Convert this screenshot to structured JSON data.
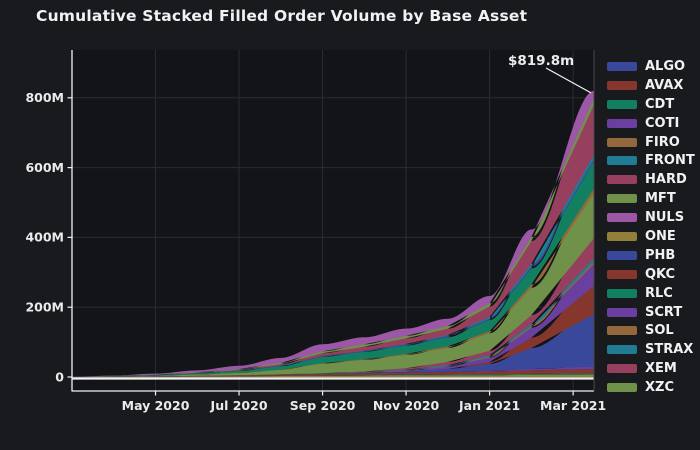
{
  "title": "Cumulative Stacked Filled Order Volume by Base Asset",
  "annotation": {
    "label": "$819.8m",
    "value_millions": 819.8
  },
  "colors": {
    "figure_bg": "#191a1e",
    "plot_bg": "#131418",
    "grid": "#2a2c32",
    "axis_line": "#f1f1f3",
    "right_spine": "#46474c",
    "text": "#f2f2f4"
  },
  "chart_data": {
    "type": "area",
    "stacked": true,
    "title": "Cumulative Stacked Filled Order Volume by Base Asset",
    "unit": "millions_usd",
    "grid": true,
    "legend_position": "right",
    "ylim": [
      0,
      935
    ],
    "total_final_millions": 819.8,
    "x": [
      "2020-03",
      "2020-04",
      "2020-05",
      "2020-06",
      "2020-07",
      "2020-08",
      "2020-09",
      "2020-10",
      "2020-11",
      "2020-12",
      "2021-01",
      "2021-02",
      "2021-03"
    ],
    "x_month_positions": [
      0,
      1,
      2,
      3,
      4,
      5,
      6,
      7,
      8,
      9,
      10,
      11,
      12.5
    ],
    "xticks": [
      {
        "month": 2,
        "label": "May 2020"
      },
      {
        "month": 4,
        "label": "Jul 2020"
      },
      {
        "month": 6,
        "label": "Sep 2020"
      },
      {
        "month": 8,
        "label": "Nov 2020"
      },
      {
        "month": 10,
        "label": "Jan 2021"
      },
      {
        "month": 12,
        "label": "Mar 2021"
      }
    ],
    "yticks": [
      {
        "value": 0,
        "label": "0"
      },
      {
        "value": 200,
        "label": "200M"
      },
      {
        "value": 400,
        "label": "400M"
      },
      {
        "value": 600,
        "label": "600M"
      },
      {
        "value": 800,
        "label": "800M"
      }
    ],
    "stack_order_bottom_to_top": [
      "ONE",
      "CDT",
      "QKC",
      "SCRT",
      "ALGO",
      "AVAX",
      "COTI",
      "FIRO",
      "FRONT",
      "HARD",
      "MFT",
      "SOL",
      "RLC",
      "PHB",
      "STRAX",
      "XEM",
      "XZC",
      "NULS"
    ],
    "series": [
      {
        "name": "ALGO",
        "color": "#3a489c",
        "values": [
          0,
          0,
          0,
          0,
          0,
          0,
          0,
          0,
          2,
          8,
          20,
          60,
          150
        ]
      },
      {
        "name": "AVAX",
        "color": "#85372e",
        "values": [
          0,
          0,
          0,
          0,
          0,
          0,
          0,
          0,
          0,
          0,
          6,
          30,
          82
        ]
      },
      {
        "name": "CDT",
        "color": "#128060",
        "values": [
          0.05,
          0.1,
          0.2,
          0.4,
          0.6,
          0.9,
          1.2,
          1.5,
          1.8,
          2.2,
          2.6,
          3.2,
          4
        ]
      },
      {
        "name": "COTI",
        "color": "#6a3fa0",
        "values": [
          0,
          0,
          0,
          0,
          0,
          0,
          0,
          1,
          3,
          7,
          12,
          28,
          62
        ]
      },
      {
        "name": "FIRO",
        "color": "#92683c",
        "values": [
          0,
          0,
          0,
          0,
          0,
          0,
          0,
          0,
          0.5,
          1.2,
          2.2,
          4,
          7
        ]
      },
      {
        "name": "FRONT",
        "color": "#1f7c92",
        "values": [
          0,
          0,
          0,
          0,
          0,
          0.5,
          1.2,
          1.8,
          2.4,
          3.2,
          4.4,
          6.5,
          9
        ]
      },
      {
        "name": "HARD",
        "color": "#963f5e",
        "values": [
          0,
          0,
          0,
          0,
          0,
          0,
          0,
          2,
          5,
          9,
          13,
          26,
          58
        ]
      },
      {
        "name": "MFT",
        "color": "#6f9149",
        "values": [
          0.2,
          0.8,
          2,
          4,
          7,
          13,
          28,
          33,
          38,
          40,
          50,
          78,
          128
        ]
      },
      {
        "name": "NULS",
        "color": "#9c58a6",
        "values": [
          0.3,
          1.2,
          3,
          5.5,
          9,
          14,
          20,
          20.4,
          20.8,
          21,
          21.3,
          21.6,
          22
        ]
      },
      {
        "name": "ONE",
        "color": "#92803a",
        "values": [
          0.1,
          0.4,
          0.8,
          1.4,
          2,
          2.8,
          3.5,
          4,
          4.4,
          4.8,
          5.2,
          6,
          7
        ]
      },
      {
        "name": "PHB",
        "color": "#3a489c",
        "values": [
          0.05,
          0.2,
          0.5,
          0.9,
          1.4,
          2,
          2.6,
          3,
          3.4,
          3.8,
          4.2,
          5,
          6
        ]
      },
      {
        "name": "QKC",
        "color": "#85372e",
        "values": [
          0.1,
          0.3,
          0.7,
          1.3,
          2.2,
          3.4,
          4.8,
          5.6,
          6.2,
          7,
          8,
          9.8,
          12
        ]
      },
      {
        "name": "RLC",
        "color": "#128060",
        "values": [
          0.2,
          0.6,
          1.5,
          3,
          5.5,
          10,
          18,
          21,
          24,
          26,
          32,
          46,
          78
        ]
      },
      {
        "name": "SCRT",
        "color": "#6a3fa0",
        "values": [
          0,
          0,
          0,
          0,
          0,
          0,
          0,
          0,
          0,
          0.8,
          1.8,
          4,
          7
        ]
      },
      {
        "name": "SOL",
        "color": "#92683c",
        "values": [
          0,
          0,
          0,
          0,
          0,
          0,
          1,
          2,
          3,
          4.5,
          6,
          9.5,
          14
        ]
      },
      {
        "name": "STRAX",
        "color": "#1f7c92",
        "values": [
          0,
          0,
          0,
          0,
          0,
          0,
          0,
          0,
          1,
          2.5,
          4.5,
          8,
          13
        ]
      },
      {
        "name": "XEM",
        "color": "#963f5e",
        "values": [
          0,
          0.1,
          0.3,
          0.8,
          1.8,
          4,
          8,
          12,
          16,
          18,
          30,
          65,
          143
        ]
      },
      {
        "name": "XZC",
        "color": "#6f9149",
        "values": [
          0.05,
          0.3,
          0.8,
          1.6,
          2.5,
          3.9,
          5.4,
          6.4,
          7.2,
          8,
          9,
          12,
          17.8
        ]
      }
    ]
  }
}
